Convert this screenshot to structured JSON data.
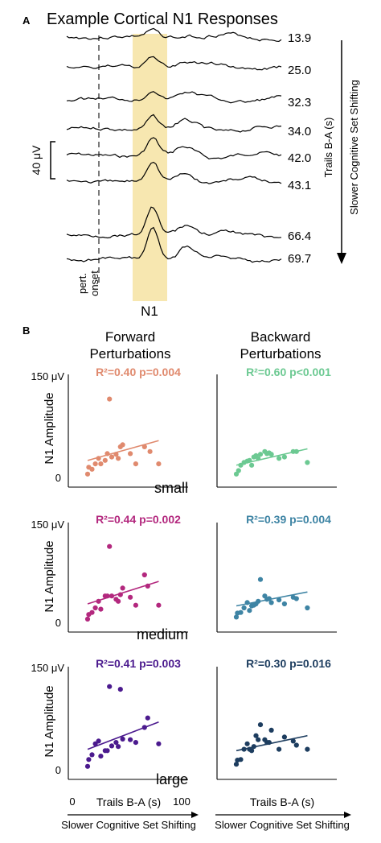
{
  "panel_a": {
    "label": "A",
    "title": "Example Cortical N1 Responses",
    "scale_bar": "40 μV",
    "window_label": "N1",
    "onset_label_1": "pert.",
    "onset_label_2": "onset",
    "side_label_1": "Trails B-A (s)",
    "side_label_2": "Slower Cognitive Set Shifting",
    "colors": {
      "n1_window": "#f7e7b0",
      "trace": "#000000"
    },
    "traces": [
      {
        "label": "13.9",
        "value": 13.9
      },
      {
        "label": "25.0",
        "value": 25.0
      },
      {
        "label": "32.3",
        "value": 32.3
      },
      {
        "label": "34.0",
        "value": 34.0
      },
      {
        "label": "42.0",
        "value": 42.0
      },
      {
        "label": "43.1",
        "value": 43.1
      },
      {
        "label": "66.4",
        "value": 66.4
      },
      {
        "label": "69.7",
        "value": 69.7
      }
    ]
  },
  "panel_b": {
    "label": "B",
    "col_forward_1": "Forward",
    "col_forward_2": "Perturbations",
    "col_backward_1": "Backward",
    "col_backward_2": "Perturbations",
    "ylabel": "N1 Amplitude",
    "y_top": "150 μV",
    "y_zero": "0",
    "x_left": "0",
    "x_right": "100",
    "xlabel": "Trails B-A (s)",
    "xlabel_sub": "Slower Cognitive Set Shifting",
    "row_small": "small",
    "row_medium": "medium",
    "row_large": "large",
    "stat_fs": "R²=0.40 p=0.004",
    "stat_bs": "R²=0.60 p<0.001",
    "stat_fm": "R²=0.44 p=0.002",
    "stat_bm": "R²=0.39 p=0.004",
    "stat_fl": "R²=0.41 p=0.003",
    "stat_bl": "R²=0.30 p=0.016"
  },
  "chart_data": [
    {
      "type": "scatter",
      "panel": "forward-small",
      "color": "#e08a6e",
      "xlim": [
        0,
        100
      ],
      "ylim": [
        0,
        150
      ],
      "ylabel": "N1 Amplitude",
      "annotation": "R²=0.40 p=0.004",
      "label": "small",
      "x": [
        14,
        15,
        18,
        21,
        24,
        26,
        30,
        32,
        34,
        36,
        40,
        42,
        44,
        46,
        53,
        58,
        66,
        71,
        79
      ],
      "y": [
        5,
        15,
        12,
        20,
        28,
        20,
        25,
        35,
        115,
        30,
        34,
        28,
        45,
        48,
        35,
        20,
        45,
        38,
        20
      ],
      "fit": {
        "x": [
          14,
          79
        ],
        "y": [
          25,
          54
        ]
      }
    },
    {
      "type": "scatter",
      "panel": "backward-small",
      "color": "#6cc992",
      "xlim": [
        0,
        100
      ],
      "ylim": [
        0,
        150
      ],
      "annotation": "R²=0.60 p<0.001",
      "x": [
        14,
        16,
        18,
        21,
        24,
        26,
        28,
        30,
        32,
        34,
        36,
        40,
        42,
        44,
        46,
        53,
        58,
        66,
        69,
        79
      ],
      "y": [
        5,
        10,
        18,
        22,
        24,
        25,
        18,
        30,
        32,
        28,
        34,
        38,
        35,
        36,
        34,
        28,
        30,
        38,
        38,
        22
      ],
      "fit": {
        "x": [
          14,
          79
        ],
        "y": [
          18,
          42
        ]
      }
    },
    {
      "type": "scatter",
      "panel": "forward-medium",
      "color": "#b3287e",
      "xlim": [
        0,
        100
      ],
      "ylim": [
        0,
        150
      ],
      "ylabel": "N1 Amplitude",
      "annotation": "R²=0.44 p=0.002",
      "label": "medium",
      "x": [
        14,
        15,
        18,
        21,
        24,
        26,
        30,
        32,
        34,
        36,
        40,
        42,
        44,
        46,
        53,
        58,
        66,
        69,
        79
      ],
      "y": [
        5,
        12,
        15,
        22,
        32,
        20,
        40,
        40,
        115,
        40,
        35,
        32,
        42,
        52,
        38,
        26,
        72,
        55,
        26
      ],
      "fit": {
        "x": [
          14,
          79
        ],
        "y": [
          28,
          62
        ]
      }
    },
    {
      "type": "scatter",
      "panel": "backward-medium",
      "color": "#3e84a4",
      "xlim": [
        0,
        100
      ],
      "ylim": [
        0,
        150
      ],
      "annotation": "R²=0.39 p=0.004",
      "x": [
        14,
        15,
        18,
        21,
        24,
        26,
        28,
        30,
        32,
        34,
        36,
        40,
        42,
        44,
        46,
        53,
        58,
        66,
        69,
        79
      ],
      "y": [
        8,
        14,
        15,
        22,
        30,
        18,
        25,
        26,
        28,
        32,
        65,
        40,
        35,
        36,
        30,
        34,
        28,
        38,
        36,
        22
      ],
      "fit": {
        "x": [
          14,
          79
        ],
        "y": [
          25,
          46
        ]
      }
    },
    {
      "type": "scatter",
      "panel": "forward-large",
      "color": "#4b1a8e",
      "xlim": [
        0,
        100
      ],
      "ylim": [
        0,
        150
      ],
      "ylabel": "N1 Amplitude",
      "annotation": "R²=0.41 p=0.003",
      "label": "large",
      "x": [
        14,
        15,
        18,
        21,
        24,
        26,
        30,
        32,
        34,
        36,
        40,
        42,
        44,
        46,
        53,
        58,
        66,
        69,
        79
      ],
      "y": [
        5,
        15,
        22,
        38,
        42,
        20,
        28,
        28,
        122,
        35,
        40,
        34,
        118,
        45,
        44,
        40,
        62,
        76,
        38
      ],
      "fit": {
        "x": [
          14,
          79
        ],
        "y": [
          30,
          70
        ]
      }
    },
    {
      "type": "scatter",
      "panel": "backward-large",
      "color": "#1d3d5f",
      "xlim": [
        0,
        100
      ],
      "ylim": [
        0,
        150
      ],
      "annotation": "R²=0.30 p=0.016",
      "x": [
        14,
        15,
        18,
        21,
        24,
        26,
        28,
        30,
        32,
        34,
        36,
        40,
        42,
        44,
        46,
        53,
        58,
        66,
        69,
        79
      ],
      "y": [
        8,
        14,
        15,
        30,
        38,
        30,
        28,
        34,
        50,
        44,
        66,
        44,
        40,
        40,
        58,
        30,
        48,
        42,
        36,
        30
      ],
      "fit": {
        "x": [
          14,
          79
        ],
        "y": [
          28,
          50
        ]
      }
    }
  ]
}
